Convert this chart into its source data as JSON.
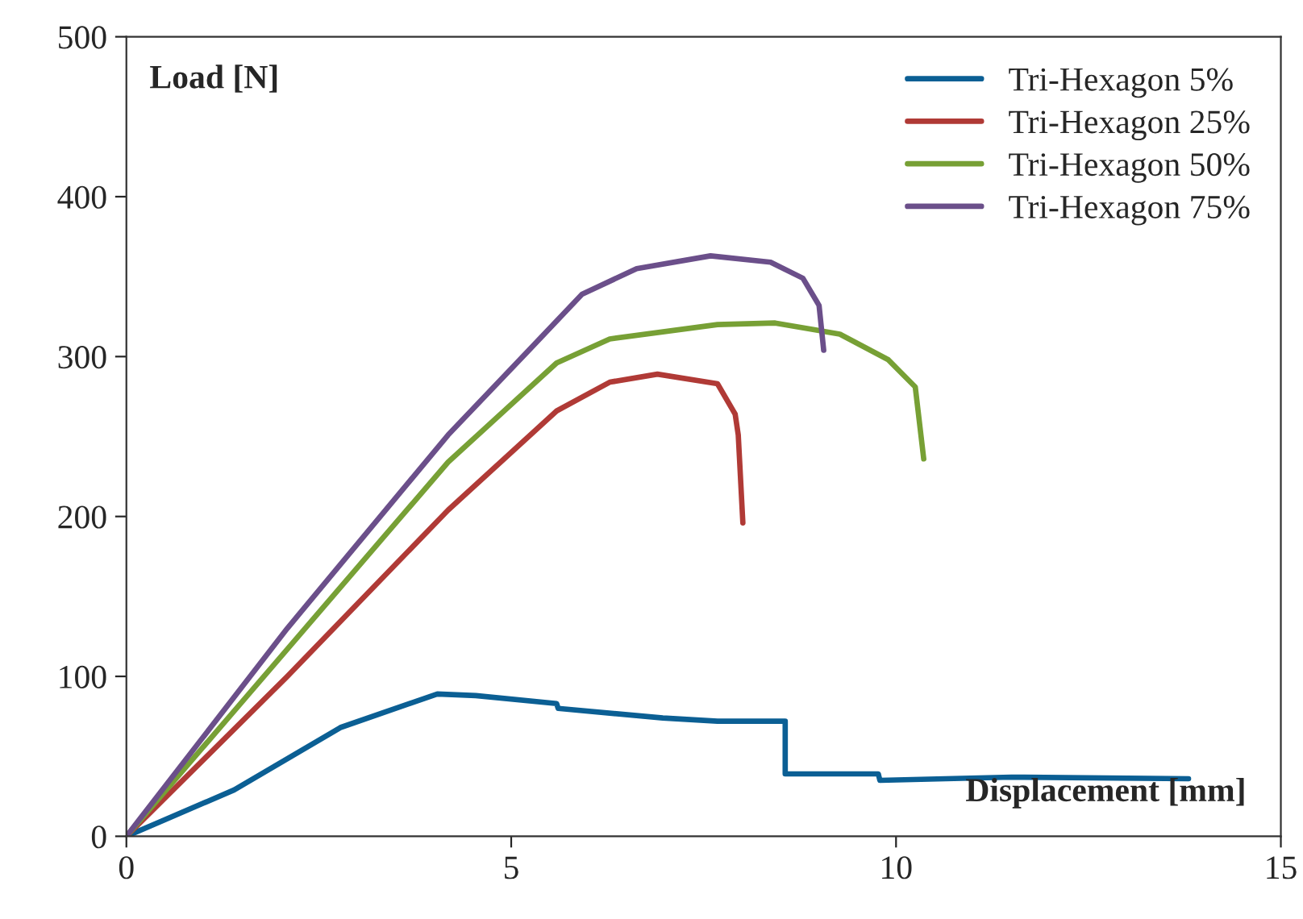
{
  "chart_data": {
    "type": "line",
    "xlabel": "Displacement [mm]",
    "ylabel": "Load [N]",
    "xlim": [
      0,
      15
    ],
    "xticks": [
      0,
      5,
      10,
      15
    ],
    "ylim": [
      0,
      500
    ],
    "yticks": [
      0,
      100,
      200,
      300,
      400,
      500
    ],
    "grid": false,
    "legend": "top right",
    "marker": "none",
    "line_style": "solid",
    "series": [
      {
        "name": "Tri-Hexagon 5%",
        "color": "#0b5f94",
        "x": [
          0,
          1.4,
          2.78,
          4.04,
          4.54,
          5.59,
          5.61,
          6.97,
          7.68,
          8.56,
          8.56,
          9.77,
          9.79,
          11.5,
          13.8
        ],
        "values": [
          0,
          29,
          68,
          89,
          88,
          83,
          80,
          74,
          72,
          72,
          39,
          39,
          35,
          37,
          36
        ]
      },
      {
        "name": "Tri-Hexagon 25%",
        "color": "#b03a36",
        "x": [
          0,
          2.09,
          4.18,
          5.59,
          6.28,
          6.9,
          7.68,
          7.91,
          7.95,
          8.01
        ],
        "values": [
          0,
          100,
          204,
          266,
          284,
          289,
          283,
          264,
          251,
          196
        ]
      },
      {
        "name": "Tri-Hexagon 50%",
        "color": "#77a035",
        "x": [
          0,
          2.09,
          4.18,
          5.59,
          6.28,
          7.68,
          8.43,
          9.27,
          9.9,
          10.25,
          10.36
        ],
        "values": [
          0,
          117,
          234,
          296,
          311,
          320,
          321,
          314,
          298,
          281,
          236
        ]
      },
      {
        "name": "Tri-Hexagon 75%",
        "color": "#6b4f8a",
        "x": [
          0,
          2.09,
          4.18,
          5.23,
          5.92,
          6.63,
          7.59,
          8.37,
          8.79,
          9.0,
          9.06
        ],
        "values": [
          0,
          130,
          251,
          304,
          339,
          355,
          363,
          359,
          349,
          332,
          304
        ]
      }
    ]
  }
}
